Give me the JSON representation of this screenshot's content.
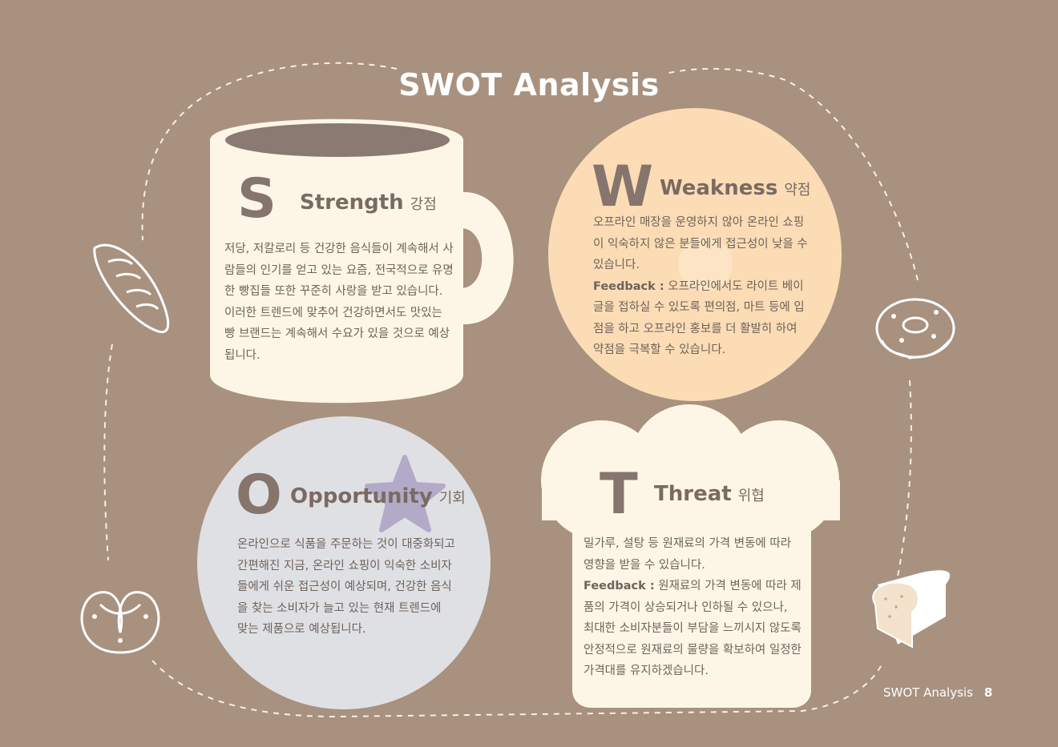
{
  "title": "SWOT Analysis",
  "colors": {
    "background": "#a8917f",
    "cream": "#fdf6e6",
    "peach": "#fbdcb5",
    "grey_blue": "#dfe0e4",
    "text_dark": "#7a6a62"
  },
  "strength": {
    "letter": "S",
    "heading": "Strength",
    "heading_ko": "강점",
    "body": "저당, 저칼로리 등 건강한 음식들이 계속해서 사람들의 인기를 얻고 있는 요즘, 전국적으로 유명한 빵집들 또한 꾸준히 사랑을 받고 있습니다. 이러한 트렌드에 맞추어 건강하면서도 맛있는 빵 브랜드는 계속해서 수요가 있을 것으로 예상됩니다."
  },
  "weakness": {
    "letter": "W",
    "heading": "Weakness",
    "heading_ko": "약점",
    "body": "오프라인 매장을 운영하지 않아 온라인 쇼핑이 익숙하지 않은 분들에게 접근성이 낮을 수 있습니다.",
    "feedback_label": "Feedback :",
    "feedback": " 오프라인에서도 라이트 베이글을 접하실 수 있도록 편의점, 마트 등에 입점을 하고 오프라인 홍보를 더 활발히 하여 약점을 극복할 수 있습니다."
  },
  "opportunity": {
    "letter": "O",
    "heading": "Opportunity",
    "heading_ko": "기회",
    "body": "온라인으로 식품을 주문하는 것이 대중화되고 간편해진 지금, 온라인 쇼핑이 익숙한 소비자들에게 쉬운 접근성이 예상되며, 건강한 음식을 찾는 소비자가 늘고 있는 현재 트렌드에 맞는 제품으로 예상됩니다."
  },
  "threat": {
    "letter": "T",
    "heading": "Threat",
    "heading_ko": "위협",
    "body": "밀가루, 설탕 등 원재료의 가격 변동에 따라 영향을 받을 수 있습니다.",
    "feedback_label": "Feedback :",
    "feedback": " 원재료의 가격 변동에 따라 제품의 가격이 상승되거나 인하될 수 있으나, 최대한 소비자분들이 부담을 느끼시지 않도록 안정적으로 원재료의 물량을 확보하여 일정한 가격대를 유지하겠습니다."
  },
  "footer": {
    "label": "SWOT Analysis",
    "page": "8"
  }
}
